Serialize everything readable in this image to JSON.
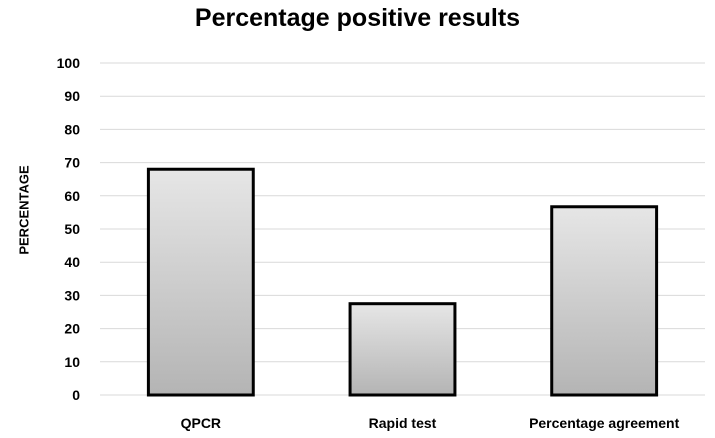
{
  "chart_data": {
    "type": "bar",
    "title": "Percentage positive results",
    "xlabel": "",
    "ylabel": "PERCENTAGE",
    "categories": [
      "QPCR",
      "Rapid test",
      "Percentage agreement"
    ],
    "values": [
      68,
      27.5,
      56.7
    ],
    "ylim": [
      0,
      100
    ],
    "yticks": [
      0,
      10,
      20,
      30,
      40,
      50,
      60,
      70,
      80,
      90,
      100
    ],
    "grid": true,
    "legend": "none",
    "colors": {
      "bar_fill_top": "#e6e6e6",
      "bar_fill_bottom": "#b4b4b4",
      "bar_stroke": "#000000",
      "grid": "#d9d9d9"
    }
  }
}
